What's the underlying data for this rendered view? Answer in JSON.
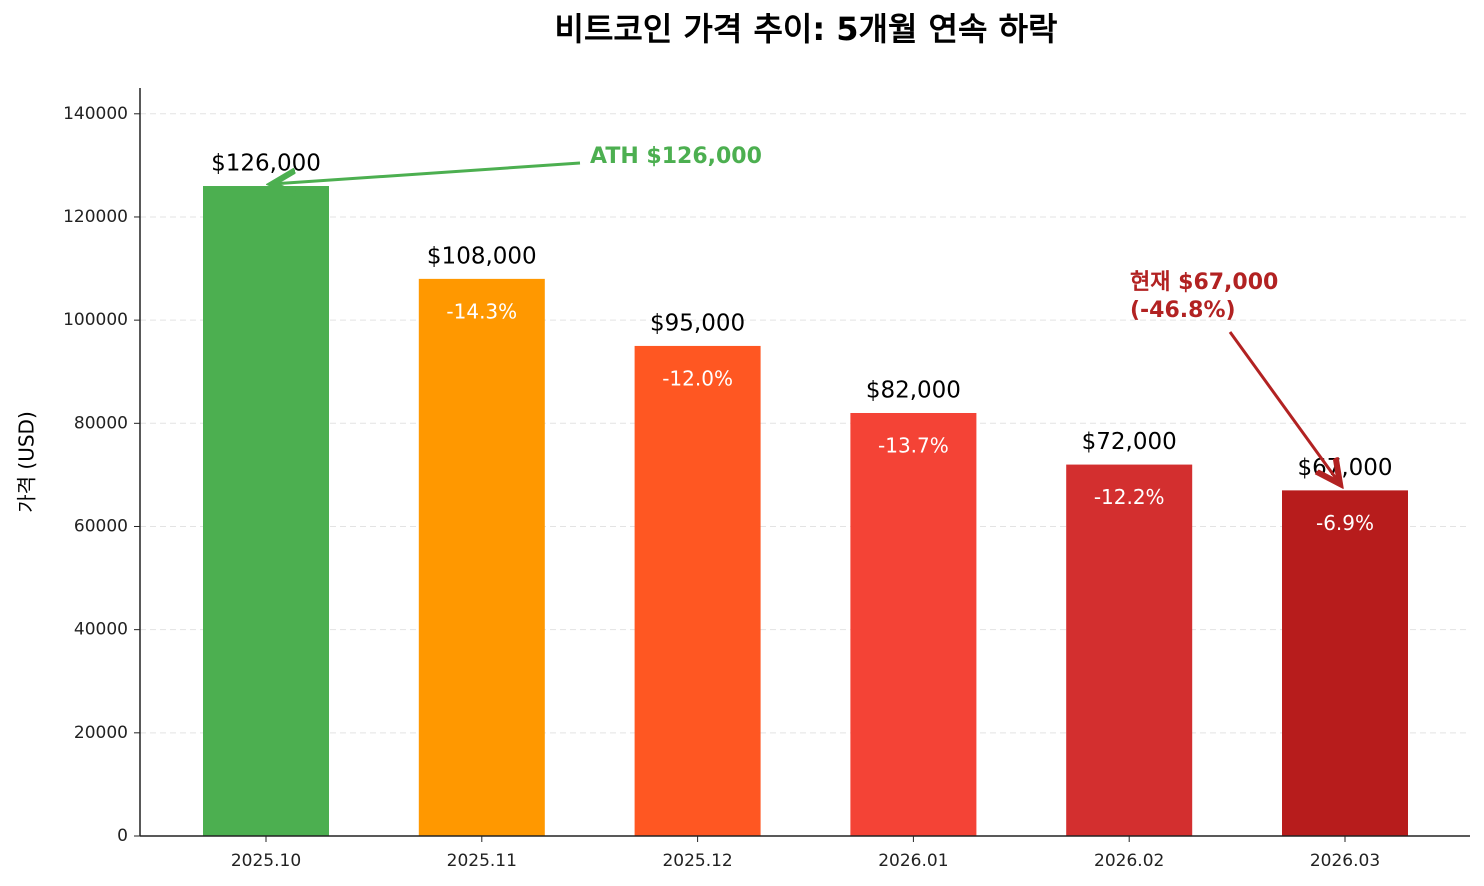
{
  "chart_data": {
    "type": "bar",
    "title": "비트코인 가격 추이: 5개월 연속 하락",
    "y_label": "가격 (USD)",
    "categories": [
      "2025.10",
      "2025.11",
      "2025.12",
      "2026.01",
      "2026.02",
      "2026.03"
    ],
    "values": [
      126000,
      108000,
      95000,
      82000,
      72000,
      67000
    ],
    "value_labels": [
      "$126,000",
      "$108,000",
      "$95,000",
      "$82,000",
      "$72,000",
      "$67,000"
    ],
    "changes": [
      null,
      -14.3,
      -12.0,
      -13.7,
      -12.2,
      -6.9
    ],
    "change_labels": [
      null,
      "-14.3%",
      "-12.0%",
      "-13.7%",
      "-12.2%",
      "-6.9%"
    ],
    "colors": [
      "#4caf50",
      "#ff9800",
      "#ff5722",
      "#f44336",
      "#d32f2f",
      "#b71c1c"
    ],
    "ylim": [
      0,
      145000
    ],
    "yticks": [
      0,
      20000,
      40000,
      60000,
      80000,
      100000,
      120000,
      140000
    ],
    "grid": true,
    "annotations": [
      {
        "lines": [
          "ATH $126,000"
        ],
        "color": "#4caf50"
      },
      {
        "lines": [
          "현재 $67,000",
          "(-46.8%)"
        ],
        "color": "#b22222"
      }
    ]
  }
}
